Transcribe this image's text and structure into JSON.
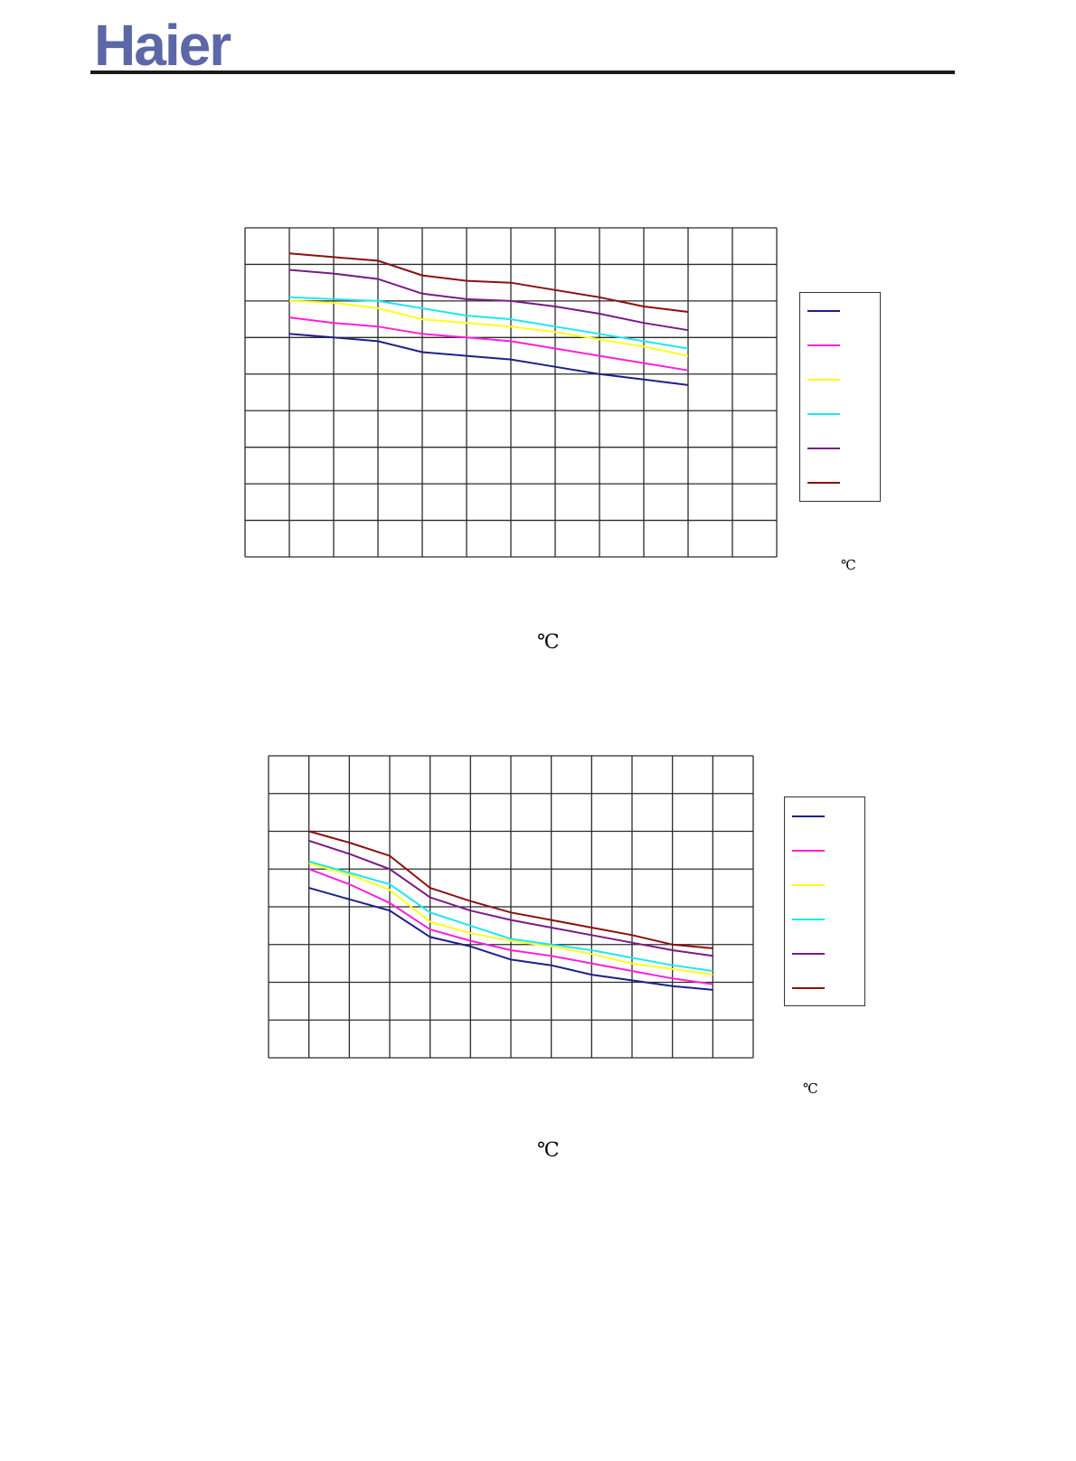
{
  "header": {
    "logo_text": "Haier",
    "logo_color": "#5b67a6"
  },
  "series_colors": [
    "#1f1f8a",
    "#ff1fd8",
    "#ffff1a",
    "#1fe6f0",
    "#7a1a8a",
    "#8b1010"
  ],
  "charts": [
    {
      "unit_small": "℃",
      "unit_large": "℃"
    },
    {
      "unit_small": "℃",
      "unit_large": "℃"
    }
  ],
  "chart_data": [
    {
      "type": "line",
      "x": [
        1,
        2,
        3,
        4,
        5,
        6,
        7,
        8,
        9,
        10
      ],
      "grid": true,
      "grid_columns": 12,
      "grid_rows": 9,
      "legend_position": "right",
      "xlim": [
        0,
        12
      ],
      "ylim": [
        0,
        9
      ],
      "series": [
        {
          "color": "#1f1f8a",
          "values": [
            6.1,
            6.0,
            5.9,
            5.6,
            5.5,
            5.4,
            5.2,
            5.0,
            4.85,
            4.7
          ]
        },
        {
          "color": "#ff1fd8",
          "values": [
            6.55,
            6.4,
            6.3,
            6.1,
            6.0,
            5.9,
            5.7,
            5.5,
            5.3,
            5.1
          ]
        },
        {
          "color": "#ffff1a",
          "values": [
            7.0,
            6.95,
            6.8,
            6.5,
            6.4,
            6.3,
            6.15,
            5.95,
            5.75,
            5.5
          ]
        },
        {
          "color": "#1fe6f0",
          "values": [
            7.1,
            7.05,
            7.0,
            6.8,
            6.6,
            6.5,
            6.3,
            6.1,
            5.9,
            5.7
          ]
        },
        {
          "color": "#7a1a8a",
          "values": [
            7.85,
            7.75,
            7.6,
            7.2,
            7.05,
            7.0,
            6.85,
            6.65,
            6.4,
            6.2
          ]
        },
        {
          "color": "#8b1010",
          "values": [
            8.3,
            8.2,
            8.1,
            7.7,
            7.55,
            7.5,
            7.3,
            7.1,
            6.85,
            6.7
          ]
        }
      ]
    },
    {
      "type": "line",
      "x": [
        1,
        2,
        3,
        4,
        5,
        6,
        7,
        8,
        9,
        10,
        11
      ],
      "grid": true,
      "grid_columns": 12,
      "grid_rows": 8,
      "legend_position": "right",
      "xlim": [
        0,
        12
      ],
      "ylim": [
        0,
        8
      ],
      "series": [
        {
          "color": "#1f1f8a",
          "values": [
            4.5,
            4.2,
            3.9,
            3.2,
            2.95,
            2.6,
            2.45,
            2.2,
            2.05,
            1.9,
            1.8
          ]
        },
        {
          "color": "#ff1fd8",
          "values": [
            5.0,
            4.6,
            4.1,
            3.4,
            3.1,
            2.85,
            2.7,
            2.5,
            2.3,
            2.1,
            1.95
          ]
        },
        {
          "color": "#ffff1a",
          "values": [
            5.15,
            4.85,
            4.45,
            3.6,
            3.3,
            3.1,
            2.95,
            2.75,
            2.5,
            2.35,
            2.2
          ]
        },
        {
          "color": "#1fe6f0",
          "values": [
            5.2,
            4.9,
            4.6,
            3.85,
            3.5,
            3.15,
            3.0,
            2.85,
            2.65,
            2.45,
            2.3
          ]
        },
        {
          "color": "#7a1a8a",
          "values": [
            5.75,
            5.4,
            5.0,
            4.25,
            3.9,
            3.65,
            3.45,
            3.25,
            3.05,
            2.85,
            2.7
          ]
        },
        {
          "color": "#8b1010",
          "values": [
            6.0,
            5.7,
            5.35,
            4.5,
            4.15,
            3.85,
            3.65,
            3.45,
            3.25,
            3.0,
            2.9
          ]
        }
      ]
    }
  ]
}
